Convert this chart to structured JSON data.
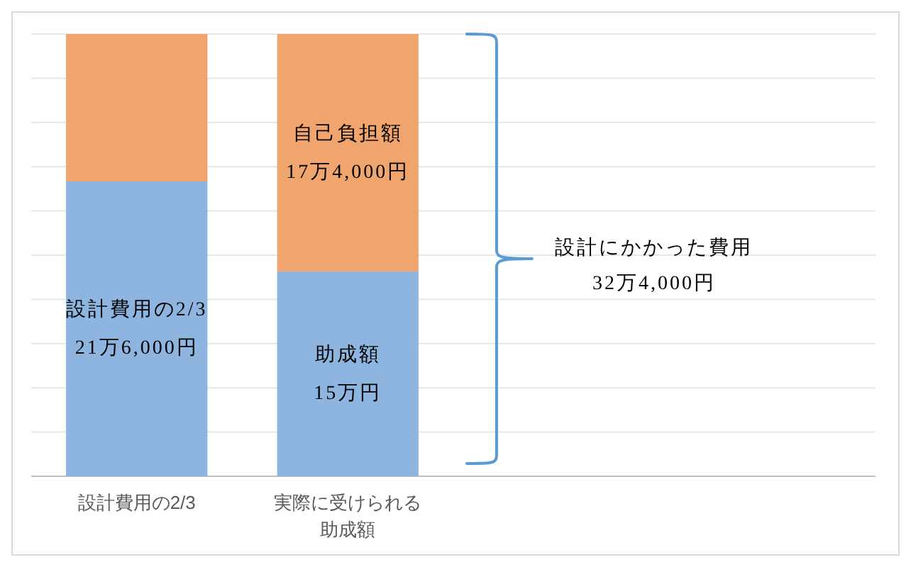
{
  "chart_data": {
    "type": "bar",
    "categories": [
      "設計費用の2/3",
      "実際に受けられる助成額"
    ],
    "series": [
      {
        "color": "#8db5df",
        "values": [
          21.6,
          15
        ],
        "value_labels": [
          "設計費用の2/3\n21万6,000円",
          "助成額\n15万円"
        ]
      },
      {
        "color": "#f0a56e",
        "values": [
          10.8,
          17.4
        ],
        "value_labels": [
          null,
          "自己負担額\n17万4,000円"
        ]
      }
    ],
    "stacked": true,
    "grid": "y",
    "annotations": [
      "設計にかかった費用\n32万4,000円"
    ]
  }
}
